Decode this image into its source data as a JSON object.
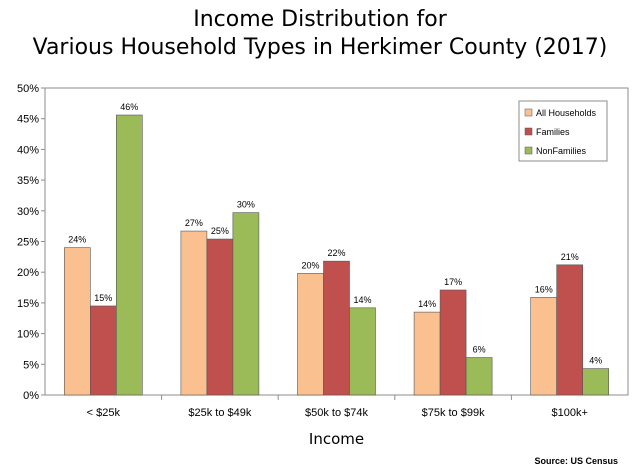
{
  "title_line1": "Income Distribution for",
  "title_line2": "Various Household Types in Herkimer County (2017)",
  "source": "Source: US Census",
  "chart_data": {
    "type": "bar",
    "title": "Income Distribution for Various Household Types in Herkimer County (2017)",
    "xlabel": "Income",
    "ylabel": "",
    "categories": [
      "< $25k",
      "$25k to $49k",
      "$50k to $74k",
      "$75k to $99k",
      "$100k+"
    ],
    "ylim": [
      0,
      50
    ],
    "yticks": [
      0,
      5,
      10,
      15,
      20,
      25,
      30,
      35,
      40,
      45,
      50
    ],
    "ytick_labels": [
      "0%",
      "5%",
      "10%",
      "15%",
      "20%",
      "25%",
      "30%",
      "35%",
      "40%",
      "45%",
      "50%"
    ],
    "grid": false,
    "legend": "top-right",
    "series": [
      {
        "name": "All Households",
        "color": "#FAC090",
        "values": [
          24,
          26.7,
          19.8,
          13.5,
          15.9
        ],
        "labels": [
          "24%",
          "27%",
          "20%",
          "14%",
          "16%"
        ]
      },
      {
        "name": "Families",
        "color": "#C0504D",
        "values": [
          14.5,
          25.4,
          21.8,
          17.1,
          21.2
        ],
        "labels": [
          "15%",
          "25%",
          "22%",
          "17%",
          "21%"
        ]
      },
      {
        "name": "NonFamilies",
        "color": "#9BBB59",
        "values": [
          45.6,
          29.7,
          14.2,
          6.1,
          4.3
        ],
        "labels": [
          "46%",
          "30%",
          "14%",
          "6%",
          "4%"
        ]
      }
    ]
  }
}
